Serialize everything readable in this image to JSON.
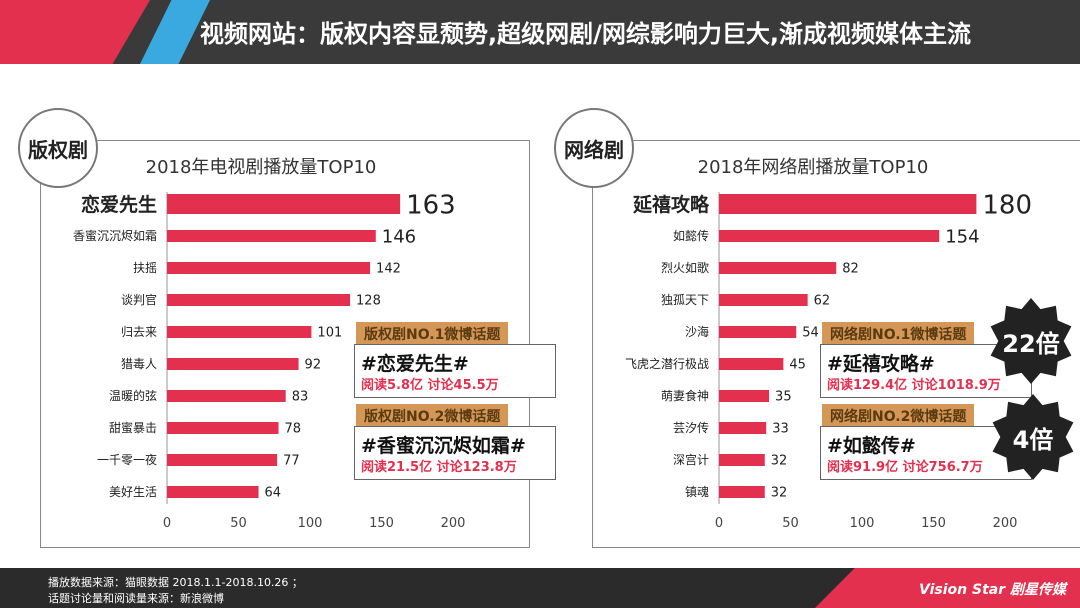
{
  "header": {
    "title": "视频网站：版权内容显颓势,超级网剧/网综影响力巨大,渐成视频媒体主流"
  },
  "left": {
    "tag": "版权剧",
    "chart_data": {
      "type": "bar",
      "orientation": "horizontal",
      "title": "2018年电视剧播放量TOP10",
      "categories": [
        "恋爱先生",
        "香蜜沉沉烬如霜",
        "扶摇",
        "谈判官",
        "归去来",
        "猎毒人",
        "温暖的弦",
        "甜蜜暴击",
        "一千零一夜",
        "美好生活"
      ],
      "values": [
        163,
        146,
        142,
        128,
        101,
        92,
        83,
        78,
        77,
        64
      ],
      "xlim": [
        0,
        200
      ],
      "xticks": [
        "0",
        "50",
        "100",
        "150",
        "200"
      ],
      "bar_color": "#e3304f"
    },
    "callouts": [
      {
        "label": "版权剧NO.1微博话题",
        "tag": "#恋爱先生#",
        "stats": "阅读5.8亿 讨论45.5万"
      },
      {
        "label": "版权剧NO.2微博话题",
        "tag": "#香蜜沉沉烬如霜#",
        "stats": "阅读21.5亿 讨论123.8万"
      }
    ]
  },
  "right": {
    "tag": "网络剧",
    "chart_data": {
      "type": "bar",
      "orientation": "horizontal",
      "title": "2018年网络剧播放量TOP10",
      "categories": [
        "延禧攻略",
        "如懿传",
        "烈火如歌",
        "独孤天下",
        "沙海",
        "飞虎之潜行极战",
        "萌妻食神",
        "芸汐传",
        "深宫计",
        "镇魂"
      ],
      "values": [
        180,
        154,
        82,
        62,
        54,
        45,
        35,
        33,
        32,
        32
      ],
      "xlim": [
        0,
        200
      ],
      "xticks": [
        "0",
        "50",
        "100",
        "150",
        "200"
      ],
      "bar_color": "#e3304f"
    },
    "callouts": [
      {
        "label": "网络剧NO.1微博话题",
        "tag": "#延禧攻略#",
        "stats": "阅读129.4亿 讨论1018.9万",
        "badge": "22倍"
      },
      {
        "label": "网络剧NO.2微博话题",
        "tag": "#如懿传#",
        "stats": "阅读91.9亿 讨论756.7万",
        "badge": "4倍"
      }
    ]
  },
  "footer": {
    "line1": "播放数据来源：猫眼数据 2018.1.1-2018.10.26 ；",
    "line2": "话题讨论量和阅读量来源：新浪微博",
    "logo": "Vision Star 剧星传媒"
  }
}
